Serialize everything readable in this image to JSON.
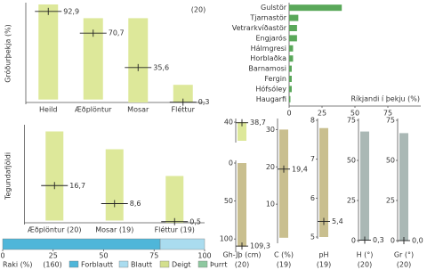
{
  "chart_data": [
    {
      "type": "range",
      "y_label": "Gróðurþekja (%)",
      "annotation": "(20)",
      "categories": [
        "Heild",
        "Æðplöntur",
        "Mosar",
        "Fléttur"
      ],
      "values": [
        92.9,
        70.7,
        35.6,
        0.3
      ],
      "value_labels": [
        "92,9",
        "70,7",
        "35,6",
        "0,3"
      ],
      "lows": [
        3,
        3,
        0,
        0
      ],
      "highs": [
        100,
        86,
        86,
        18
      ],
      "ylim": [
        0,
        100
      ],
      "color": "#dde89a"
    },
    {
      "type": "hbar",
      "x_label": "Ríkjandi í þekju (%)",
      "categories": [
        "Gulstör",
        "Tjarnastör",
        "Vetrarkvíðastör",
        "Engjarós",
        "Hálmgresi",
        "Horblaðka",
        "Barnamosi",
        "Fergin",
        "Hófsóley",
        "Haugarfi"
      ],
      "values": [
        40,
        7,
        6,
        6,
        3,
        3,
        2,
        2,
        2,
        1
      ],
      "xlim": [
        0,
        100
      ],
      "xticks": [
        0,
        25,
        50,
        75
      ],
      "color": "#5aa85a"
    },
    {
      "type": "range",
      "y_label": "Tegundafjöldi",
      "categories": [
        "Æðplöntur (20)",
        "Mosar (19)",
        "Fléttur (19)"
      ],
      "values": [
        16.7,
        8.6,
        0.5
      ],
      "value_labels": [
        "16,7",
        "8,6",
        "0,5"
      ],
      "lows": [
        1,
        1,
        0
      ],
      "highs": [
        41,
        33,
        21
      ],
      "ylim": [
        0,
        42
      ],
      "color": "#dde89a"
    },
    {
      "type": "stacked-hbar",
      "x_label": "Raki (%)",
      "annotation": "(160)",
      "series": [
        {
          "name": "Forblautt",
          "color": "#4fb6d9",
          "values": [
            78
          ]
        },
        {
          "name": "Blautt",
          "color": "#aadcef",
          "values": [
            22
          ]
        },
        {
          "name": "Deigt",
          "color": "#d3df8e",
          "values": [
            0
          ]
        },
        {
          "name": "Þurrt",
          "color": "#8ec8a0",
          "values": [
            0
          ]
        }
      ],
      "xlim": [
        0,
        100
      ],
      "xticks": [
        0,
        25,
        50,
        75,
        100
      ]
    },
    {
      "type": "range",
      "categories": [
        "Gh-Jþ (cm)"
      ],
      "annotation": "(20)",
      "values": [
        38.7
      ],
      "value_labels": [
        "38,7"
      ],
      "lows": [
        0
      ],
      "highs": [
        40
      ],
      "ylim": [
        0,
        42
      ],
      "yticks": [
        40
      ],
      "color": "#dde89a"
    },
    {
      "type": "range",
      "inverted": true,
      "values": [
        109.3
      ],
      "value_labels": [
        "109,3"
      ],
      "lows": [
        0
      ],
      "highs": [
        110
      ],
      "ylim": [
        0,
        115
      ],
      "yticks": [
        0,
        50,
        100
      ],
      "color": "#c9bf8f"
    },
    {
      "type": "range",
      "categories": [
        "C (%)"
      ],
      "annotation": "(19)",
      "values": [
        19.4
      ],
      "value_labels": [
        "19,4"
      ],
      "lows": [
        1
      ],
      "highs": [
        30
      ],
      "ylim": [
        0,
        32
      ],
      "yticks": [
        10,
        20,
        30
      ],
      "color": "#c9bf8f"
    },
    {
      "type": "range",
      "categories": [
        "pH"
      ],
      "annotation": "(19)",
      "values": [
        5.4
      ],
      "value_labels": [
        "5,4"
      ],
      "lows": [
        5
      ],
      "highs": [
        7.8
      ],
      "ylim": [
        5,
        8
      ],
      "yticks": [
        5,
        6,
        7,
        8
      ],
      "color": "#c9bf8f"
    },
    {
      "type": "range",
      "categories": [
        "H (°)"
      ],
      "annotation": "(20)",
      "values": [
        0.3
      ],
      "value_labels": [
        "0,3"
      ],
      "lows": [
        0
      ],
      "highs": [
        68
      ],
      "ylim": [
        0,
        75
      ],
      "yticks": [
        0,
        25,
        50,
        75
      ],
      "color": "#aab8b5"
    },
    {
      "type": "range",
      "categories": [
        "Gr (°)"
      ],
      "annotation": "(20)",
      "values": [
        0
      ],
      "value_labels": [
        "0,0"
      ],
      "lows": [
        0
      ],
      "highs": [
        67
      ],
      "ylim": [
        0,
        75
      ],
      "yticks": [
        0,
        25,
        50,
        75
      ],
      "color": "#aab8b5"
    }
  ]
}
